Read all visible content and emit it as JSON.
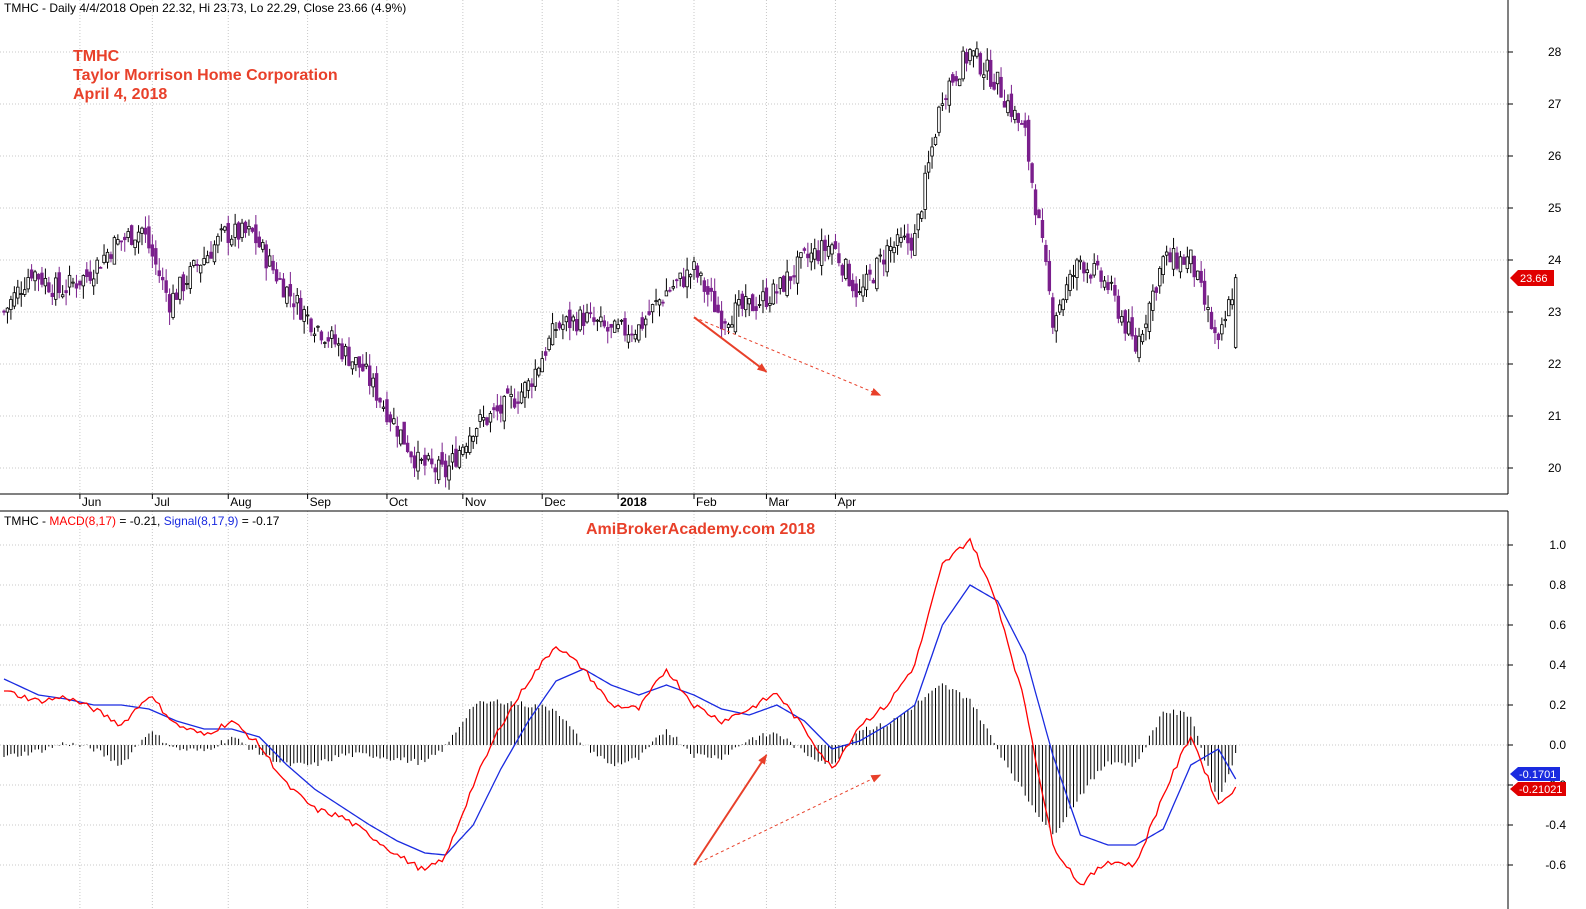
{
  "header": {
    "price_line": "TMHC - Daily 4/4/2018 Open 22.32, Hi 23.73, Lo 22.29, Close 23.66 (4.9%)",
    "macd_prefix": "TMHC - ",
    "macd_name": "MACD(8,17)",
    "macd_value": " = -0.21, ",
    "signal_name": "Signal(8,17,9)",
    "signal_value": " = -0.17"
  },
  "annotation": {
    "line1": "TMHC",
    "line2": "Taylor Morrison Home Corporation",
    "line3": "April 4, 2018"
  },
  "watermark": "AmiBrokerAcademy.com 2018",
  "last_price_tag": "23.66",
  "macd_tag": "-0.21021",
  "signal_tag": "-0.1701",
  "colors": {
    "up_candle": "#ffffff",
    "down_candle": "#7a1f8c",
    "macd": "#ff0000",
    "signal": "#1a2be0",
    "histogram": "#000000",
    "annotation": "#e8402a"
  },
  "chart_data": [
    {
      "type": "candlestick",
      "title": "TMHC - Daily",
      "series_name": "TMHC",
      "x_labels": [
        "Jun",
        "Jul",
        "Aug",
        "Sep",
        "Oct",
        "Nov",
        "Dec",
        "2018",
        "Feb",
        "Mar",
        "Apr"
      ],
      "y_ticks": [
        20,
        21,
        22,
        23,
        24,
        25,
        26,
        27,
        28
      ],
      "ylim": [
        19.5,
        28.9
      ],
      "grid": true,
      "close_path": [
        [
          0,
          23.0
        ],
        [
          8,
          23.8
        ],
        [
          16,
          23.4
        ],
        [
          24,
          23.7
        ],
        [
          32,
          24.3
        ],
        [
          40,
          24.6
        ],
        [
          48,
          23.2
        ],
        [
          56,
          23.9
        ],
        [
          64,
          24.5
        ],
        [
          72,
          24.5
        ],
        [
          80,
          23.6
        ],
        [
          88,
          22.9
        ],
        [
          96,
          22.4
        ],
        [
          104,
          21.9
        ],
        [
          112,
          21.0
        ],
        [
          120,
          20.1
        ],
        [
          128,
          19.9
        ],
        [
          136,
          20.8
        ],
        [
          144,
          21.1
        ],
        [
          152,
          21.6
        ],
        [
          160,
          22.7
        ],
        [
          168,
          22.9
        ],
        [
          176,
          22.6
        ],
        [
          184,
          22.7
        ],
        [
          192,
          23.4
        ],
        [
          200,
          23.8
        ],
        [
          208,
          22.9
        ],
        [
          216,
          23.1
        ],
        [
          224,
          23.4
        ],
        [
          232,
          24.0
        ],
        [
          240,
          24.3
        ],
        [
          248,
          23.3
        ],
        [
          256,
          24.2
        ],
        [
          264,
          24.4
        ],
        [
          272,
          27.2
        ],
        [
          280,
          28.0
        ],
        [
          288,
          27.4
        ],
        [
          296,
          26.4
        ],
        [
          304,
          22.9
        ],
        [
          312,
          24.0
        ],
        [
          320,
          23.5
        ],
        [
          328,
          22.3
        ],
        [
          336,
          24.0
        ],
        [
          344,
          24.0
        ],
        [
          352,
          22.3
        ],
        [
          357,
          23.66
        ]
      ],
      "trend_arrows": [
        {
          "from": [
            "2018-02-01",
            22.9
          ],
          "to": [
            "2018-03-08",
            21.85
          ],
          "style": "solid"
        },
        {
          "from": [
            "2018-02-01",
            22.9
          ],
          "to": [
            "2018-04-16",
            21.4
          ],
          "style": "dashed"
        }
      ]
    },
    {
      "type": "line",
      "title": "TMHC - MACD(8,17) = -0.21, Signal(8,17,9) = -0.17",
      "y_ticks": [
        -0.6,
        -0.4,
        -0.2,
        0.0,
        0.2,
        0.4,
        0.6,
        0.8,
        1.0
      ],
      "ylim": [
        -0.75,
        1.05
      ],
      "series": [
        {
          "name": "MACD(8,17)",
          "points": [
            [
              0,
              0.27
            ],
            [
              10,
              0.22
            ],
            [
              18,
              0.24
            ],
            [
              26,
              0.18
            ],
            [
              34,
              0.1
            ],
            [
              42,
              0.25
            ],
            [
              50,
              0.1
            ],
            [
              58,
              0.05
            ],
            [
              66,
              0.12
            ],
            [
              74,
              0.0
            ],
            [
              82,
              -0.2
            ],
            [
              90,
              -0.32
            ],
            [
              98,
              -0.36
            ],
            [
              106,
              -0.45
            ],
            [
              114,
              -0.55
            ],
            [
              122,
              -0.63
            ],
            [
              128,
              -0.56
            ],
            [
              136,
              -0.2
            ],
            [
              144,
              0.1
            ],
            [
              152,
              0.32
            ],
            [
              160,
              0.5
            ],
            [
              168,
              0.38
            ],
            [
              176,
              0.2
            ],
            [
              184,
              0.18
            ],
            [
              192,
              0.38
            ],
            [
              200,
              0.2
            ],
            [
              208,
              0.12
            ],
            [
              216,
              0.18
            ],
            [
              224,
              0.26
            ],
            [
              232,
              0.08
            ],
            [
              240,
              -0.12
            ],
            [
              248,
              0.1
            ],
            [
              256,
              0.2
            ],
            [
              264,
              0.4
            ],
            [
              272,
              0.9
            ],
            [
              280,
              1.03
            ],
            [
              288,
              0.7
            ],
            [
              296,
              0.2
            ],
            [
              304,
              -0.5
            ],
            [
              312,
              -0.7
            ],
            [
              320,
              -0.58
            ],
            [
              328,
              -0.6
            ],
            [
              336,
              -0.25
            ],
            [
              344,
              0.05
            ],
            [
              352,
              -0.3
            ],
            [
              357,
              -0.21
            ]
          ]
        },
        {
          "name": "Signal(8,17,9)",
          "points": [
            [
              0,
              0.33
            ],
            [
              10,
              0.25
            ],
            [
              18,
              0.23
            ],
            [
              26,
              0.2
            ],
            [
              34,
              0.2
            ],
            [
              42,
              0.18
            ],
            [
              50,
              0.12
            ],
            [
              58,
              0.08
            ],
            [
              66,
              0.08
            ],
            [
              74,
              0.04
            ],
            [
              82,
              -0.1
            ],
            [
              90,
              -0.22
            ],
            [
              98,
              -0.31
            ],
            [
              106,
              -0.4
            ],
            [
              114,
              -0.48
            ],
            [
              122,
              -0.54
            ],
            [
              128,
              -0.55
            ],
            [
              136,
              -0.4
            ],
            [
              144,
              -0.12
            ],
            [
              152,
              0.12
            ],
            [
              160,
              0.32
            ],
            [
              168,
              0.38
            ],
            [
              176,
              0.3
            ],
            [
              184,
              0.25
            ],
            [
              192,
              0.3
            ],
            [
              200,
              0.25
            ],
            [
              208,
              0.18
            ],
            [
              216,
              0.15
            ],
            [
              224,
              0.2
            ],
            [
              232,
              0.12
            ],
            [
              240,
              -0.02
            ],
            [
              248,
              0.02
            ],
            [
              256,
              0.1
            ],
            [
              264,
              0.2
            ],
            [
              272,
              0.6
            ],
            [
              280,
              0.8
            ],
            [
              288,
              0.72
            ],
            [
              296,
              0.45
            ],
            [
              304,
              -0.05
            ],
            [
              312,
              -0.45
            ],
            [
              320,
              -0.5
            ],
            [
              328,
              -0.5
            ],
            [
              336,
              -0.42
            ],
            [
              344,
              -0.1
            ],
            [
              352,
              -0.02
            ],
            [
              357,
              -0.17
            ]
          ]
        }
      ],
      "histogram": "MACD minus Signal",
      "trend_arrows": [
        {
          "from": [
            "2018-02-01",
            -0.6
          ],
          "to": [
            "2018-03-08",
            -0.05
          ],
          "style": "solid"
        },
        {
          "from": [
            "2018-02-01",
            -0.6
          ],
          "to": [
            "2018-04-16",
            -0.15
          ],
          "style": "dashed"
        }
      ]
    }
  ]
}
